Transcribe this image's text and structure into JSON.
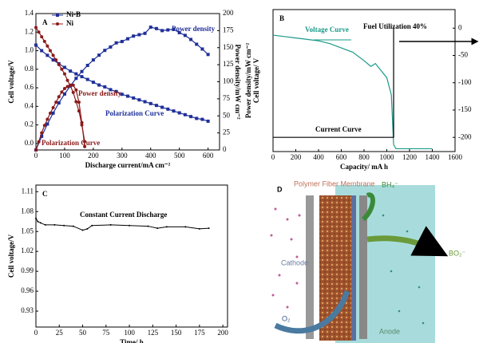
{
  "chart_data": [
    {
      "type": "line",
      "panel_label": "A",
      "xlabel": "Discharge current/mA cm⁻²",
      "ylabel": "Cell voltage/V",
      "y2label": "Power density/mW cm⁻²",
      "xlim": [
        0,
        640
      ],
      "xticks": [
        0,
        100,
        200,
        300,
        400,
        500,
        600
      ],
      "ylim": [
        -0.07,
        1.4
      ],
      "yticks": [
        {
          "value": 0,
          "label": "0.0"
        },
        0.2,
        0.4,
        0.6,
        0.8,
        {
          "value": 1,
          "label": "1.0"
        },
        1.2,
        1.4
      ],
      "y2lim": [
        0,
        200
      ],
      "y2ticks": [
        0,
        25,
        50,
        75,
        100,
        125,
        150,
        175,
        200
      ],
      "legend": "upper left",
      "annotations": [
        "Power density",
        "Power density",
        "Polarization Curve",
        "Polarization Curve"
      ],
      "series": [
        {
          "name": "Ni-B",
          "color": "#1f2f9a",
          "marker": "square",
          "x": [
            0,
            20,
            40,
            60,
            80,
            100,
            120,
            140,
            160,
            180,
            200,
            220,
            240,
            260,
            280,
            300,
            320,
            340,
            360,
            380,
            400,
            420,
            440,
            460,
            480,
            500,
            520,
            540,
            560,
            580,
            600
          ],
          "values": [
            1.06,
            1.0,
            0.95,
            0.9,
            0.86,
            0.82,
            0.78,
            0.75,
            0.72,
            0.69,
            0.66,
            0.63,
            0.61,
            0.58,
            0.56,
            0.53,
            0.51,
            0.49,
            0.47,
            0.45,
            0.43,
            0.41,
            0.39,
            0.37,
            0.35,
            0.33,
            0.31,
            0.29,
            0.27,
            0.26,
            0.24
          ]
        },
        {
          "name": "Ni",
          "color": "#8b1a1a",
          "marker": "circle",
          "x": [
            0,
            10,
            20,
            30,
            40,
            50,
            60,
            70,
            80,
            90,
            100,
            110,
            120,
            130,
            140,
            150,
            160,
            170
          ],
          "values": [
            1.25,
            1.2,
            1.15,
            1.1,
            1.05,
            1.0,
            0.95,
            0.9,
            0.85,
            0.8,
            0.75,
            0.68,
            0.62,
            0.55,
            0.45,
            0.35,
            0.2,
            0.02
          ]
        },
        {
          "color": "#1f2f9a",
          "marker": "square",
          "axis": "y2",
          "x": [
            0,
            20,
            40,
            60,
            80,
            100,
            120,
            140,
            160,
            180,
            200,
            220,
            240,
            260,
            280,
            300,
            320,
            340,
            360,
            380,
            400,
            420,
            440,
            460,
            480,
            500,
            520,
            540,
            560,
            580,
            600
          ],
          "values": [
            0,
            20,
            38,
            54,
            69,
            82,
            94,
            105,
            115,
            124,
            132,
            139,
            146,
            151,
            157,
            159,
            163,
            167,
            169,
            171,
            180,
            178,
            175,
            176,
            177,
            172,
            168,
            162,
            155,
            148,
            140
          ]
        },
        {
          "color": "#8b1a1a",
          "marker": "circle",
          "axis": "y2",
          "x": [
            0,
            10,
            20,
            30,
            40,
            50,
            60,
            70,
            80,
            90,
            100,
            110,
            120,
            130,
            140,
            150,
            160,
            170
          ],
          "values": [
            0,
            12,
            25,
            36,
            45,
            54,
            62,
            70,
            78,
            85,
            90,
            93,
            95,
            95,
            88,
            70,
            40,
            5
          ]
        }
      ]
    },
    {
      "type": "line",
      "panel_label": "B",
      "xlabel": "Capacity/ mA h",
      "ylabel": "Power density/mW cm⁻²",
      "ylabel2": "Cell voltage/ V",
      "xlim": [
        0,
        1600
      ],
      "xticks": [
        0,
        200,
        400,
        600,
        800,
        1000,
        1200,
        1400,
        1600
      ],
      "ylim": [
        0,
        1
      ],
      "y2lim": [
        -226,
        34
      ],
      "y2ticks": [
        0,
        -50,
        -100,
        -150,
        -200
      ],
      "annotations": [
        "Voltage Curve",
        "Current Curve",
        "Fuel Utilization 40%"
      ],
      "series": [
        {
          "color": "#1a9a8a",
          "x": [
            0,
            100,
            200,
            300,
            400,
            500,
            600,
            700,
            800,
            860,
            900,
            940,
            1000,
            1040,
            1060,
            1080,
            1400
          ],
          "values": [
            0.82,
            0.81,
            0.8,
            0.79,
            0.78,
            0.76,
            0.73,
            0.7,
            0.64,
            0.6,
            0.62,
            0.58,
            0.52,
            0.4,
            0.05,
            0.02,
            0.02
          ]
        },
        {
          "color": "#000000",
          "axis": "y2",
          "x": [
            0,
            1060,
            1060
          ],
          "values": [
            -200,
            -200,
            0
          ]
        }
      ]
    },
    {
      "type": "line",
      "panel_label": "C",
      "title": "Constant Current Discharge",
      "xlabel": "Time/ h",
      "ylabel": "Cell voltage/V",
      "xlim": [
        0,
        205
      ],
      "xticks": [
        0,
        25,
        50,
        75,
        100,
        125,
        150,
        175,
        200
      ],
      "ylim": [
        0.906,
        1.12
      ],
      "yticks": [
        0.93,
        0.96,
        0.99,
        1.02,
        1.05,
        1.08,
        1.11
      ],
      "series": [
        {
          "color": "#000000",
          "marker": "dot",
          "x": [
            0,
            2,
            5,
            10,
            20,
            30,
            40,
            50,
            55,
            60,
            80,
            100,
            120,
            130,
            140,
            160,
            175,
            185
          ],
          "values": [
            1.07,
            1.065,
            1.063,
            1.06,
            1.06,
            1.059,
            1.058,
            1.052,
            1.054,
            1.059,
            1.06,
            1.059,
            1.058,
            1.055,
            1.057,
            1.057,
            1.054,
            1.055
          ]
        }
      ]
    }
  ],
  "diagram": {
    "label": "D",
    "membrane": "Polymer Fiber Membrane",
    "fuel": "BH₄⁻",
    "product": "BO₂⁻",
    "cathode": "Cathode",
    "anode": "Anode",
    "oxidant": "O₂"
  }
}
